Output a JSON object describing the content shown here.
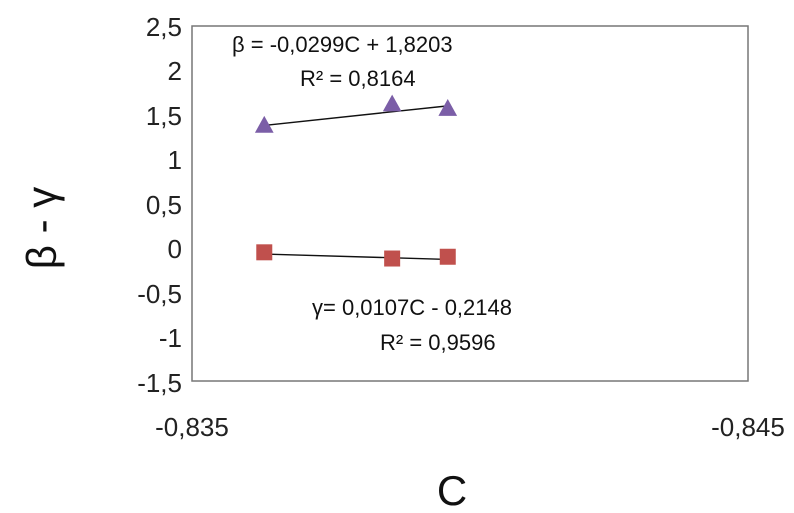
{
  "chart_data": {
    "type": "scatter",
    "title": "",
    "xlabel": "C",
    "ylabel": "β - γ",
    "xlim": [
      -0.835,
      -0.845
    ],
    "ylim": [
      -1.5,
      2.5
    ],
    "x_tick_labels": [
      "-0,835",
      "-0,845"
    ],
    "y_tick_labels": [
      "-1,5",
      "-1",
      "-0,5",
      "0",
      "0,5",
      "1",
      "1,5",
      "2",
      "2,5"
    ],
    "grid": false,
    "legend": "none",
    "series": [
      {
        "marker": "triangle",
        "color": "#7B5EA7",
        "x": [
          -0.8363,
          -0.8386,
          -0.8396
        ],
        "y": [
          1.38,
          1.62,
          1.57
        ],
        "trendline": {
          "equation": "β = -0,0299C + 1,8203",
          "r2": "R² = 0,8164",
          "y_start": 1.38,
          "y_end": 1.6
        }
      },
      {
        "marker": "square",
        "color": "#C0504D",
        "x": [
          -0.8363,
          -0.8386,
          -0.8396
        ],
        "y": [
          -0.05,
          -0.12,
          -0.1
        ],
        "trendline": {
          "equation": "γ= 0,0107C - 0,2148",
          "r2": "R² = 0,9596",
          "y_start": -0.07,
          "y_end": -0.13
        }
      }
    ]
  }
}
